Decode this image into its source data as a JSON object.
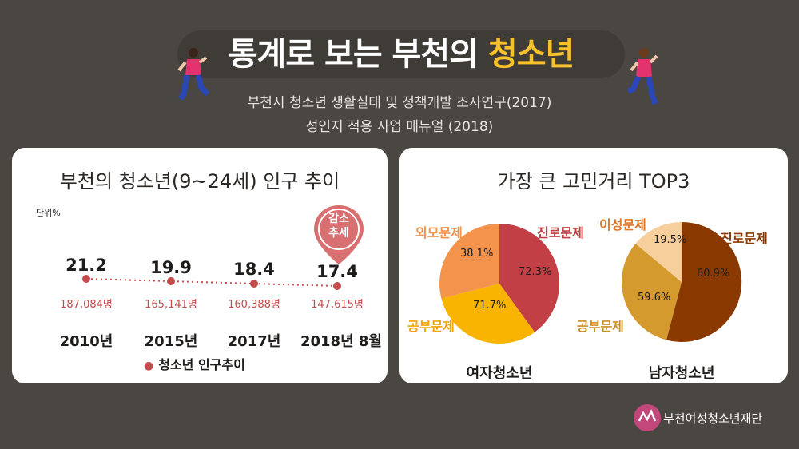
{
  "header": {
    "title_main": "통계로 보는 부천의",
    "title_highlight": "청소년",
    "subtitle_line1": "부천시 청소년 생활실태 및 정책개발 조사연구(2017)",
    "subtitle_line2": "성인지 적용 사업 매뉴얼 (2018)"
  },
  "population_card": {
    "title": "부천의 청소년(9~24세) 인구 추이",
    "unit_label": "단위%",
    "badge_line1": "감소",
    "badge_line2": "추세",
    "legend_label": "청소년 인구추이",
    "points": [
      {
        "year": "2010년",
        "percent": "21.2",
        "count": "187,084명"
      },
      {
        "year": "2015년",
        "percent": "19.9",
        "count": "165,141명"
      },
      {
        "year": "2017년",
        "percent": "18.4",
        "count": "160,388명"
      },
      {
        "year": "2018년 8월",
        "percent": "17.4",
        "count": "147,615명"
      }
    ]
  },
  "concerns_card": {
    "title": "가장 큰 고민거리 TOP3",
    "female": {
      "caption": "여자청소년",
      "career_label": "진로문제",
      "career_pct": "72.3%",
      "study_label": "공부문제",
      "study_pct": "71.7%",
      "appearance_label": "외모문제",
      "appearance_pct": "38.1%"
    },
    "male": {
      "caption": "남자청소년",
      "career_label": "진로문제",
      "career_pct": "60.9%",
      "study_label": "공부문제",
      "study_pct": "59.6%",
      "romance_label": "이성문제",
      "romance_pct": "19.5%"
    }
  },
  "colors": {
    "background": "#4a4641",
    "highlight": "#f6c12a",
    "female_career": "#c23f45",
    "female_study": "#f8b400",
    "female_appearance": "#f4934c",
    "male_career": "#8a3a00",
    "male_study": "#d49a2e",
    "male_romance": "#f7cf9c",
    "trend_red": "#c34b4b"
  },
  "footer": {
    "org_name": "부천여성청소년재단"
  }
}
